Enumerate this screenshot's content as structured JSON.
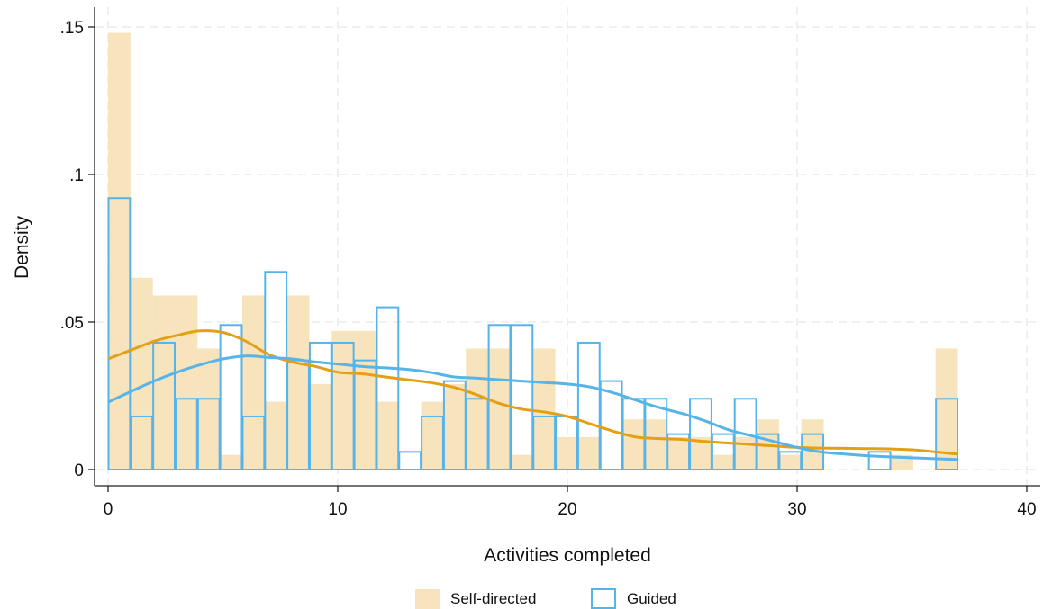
{
  "chart_data": {
    "type": "bar",
    "subtype": "histogram with kernel density overlays",
    "xlabel": "Activities completed",
    "ylabel": "Density",
    "xlim": [
      -1,
      41
    ],
    "ylim": [
      -0.005,
      0.155
    ],
    "x_ticks": [
      0,
      10,
      20,
      30,
      40
    ],
    "x_tick_labels": [
      "0",
      "10",
      "20",
      "30",
      "40"
    ],
    "y_ticks": [
      0,
      0.05,
      0.1,
      0.15
    ],
    "y_tick_labels": [
      "0",
      ".05",
      ".1",
      ".15"
    ],
    "grid": true,
    "legend_position": "bottom",
    "bin_width": 0.974,
    "series": [
      {
        "name": "Self-directed",
        "style": "filled bars",
        "color": "#f7e3bc",
        "bins": [
          {
            "x0": 0.0,
            "value": 0.148
          },
          {
            "x0": 0.974,
            "value": 0.065
          },
          {
            "x0": 1.947,
            "value": 0.059
          },
          {
            "x0": 2.921,
            "value": 0.059
          },
          {
            "x0": 3.895,
            "value": 0.041
          },
          {
            "x0": 4.868,
            "value": 0.005
          },
          {
            "x0": 5.842,
            "value": 0.059
          },
          {
            "x0": 6.816,
            "value": 0.023
          },
          {
            "x0": 7.789,
            "value": 0.059
          },
          {
            "x0": 8.763,
            "value": 0.029
          },
          {
            "x0": 9.737,
            "value": 0.047
          },
          {
            "x0": 10.711,
            "value": 0.047
          },
          {
            "x0": 11.684,
            "value": 0.023
          },
          {
            "x0": 13.632,
            "value": 0.023
          },
          {
            "x0": 14.605,
            "value": 0.029
          },
          {
            "x0": 15.579,
            "value": 0.041
          },
          {
            "x0": 16.553,
            "value": 0.041
          },
          {
            "x0": 17.526,
            "value": 0.005
          },
          {
            "x0": 18.5,
            "value": 0.041
          },
          {
            "x0": 19.474,
            "value": 0.011
          },
          {
            "x0": 20.447,
            "value": 0.011
          },
          {
            "x0": 22.395,
            "value": 0.017
          },
          {
            "x0": 23.368,
            "value": 0.017
          },
          {
            "x0": 24.342,
            "value": 0.011
          },
          {
            "x0": 25.316,
            "value": 0.011
          },
          {
            "x0": 26.289,
            "value": 0.005
          },
          {
            "x0": 27.263,
            "value": 0.011
          },
          {
            "x0": 28.237,
            "value": 0.017
          },
          {
            "x0": 29.211,
            "value": 0.005
          },
          {
            "x0": 30.184,
            "value": 0.017
          },
          {
            "x0": 34.079,
            "value": 0.005
          },
          {
            "x0": 36.026,
            "value": 0.041
          }
        ],
        "density_curve": {
          "color": "#e3a016",
          "x": [
            0,
            1,
            2,
            3,
            4,
            5,
            6,
            7,
            8,
            9,
            10,
            11,
            12,
            13,
            14,
            15,
            16,
            17,
            18,
            19,
            20,
            21,
            22,
            23,
            24,
            25,
            26,
            27,
            28,
            29,
            30,
            31,
            32,
            33,
            34,
            35,
            36,
            37
          ],
          "y": [
            0.0375,
            0.0405,
            0.0435,
            0.0455,
            0.047,
            0.0465,
            0.0435,
            0.039,
            0.0365,
            0.035,
            0.033,
            0.0325,
            0.0315,
            0.0305,
            0.0295,
            0.028,
            0.0255,
            0.0225,
            0.0205,
            0.0195,
            0.018,
            0.0155,
            0.013,
            0.011,
            0.0105,
            0.0102,
            0.0095,
            0.009,
            0.0085,
            0.008,
            0.0075,
            0.0073,
            0.0072,
            0.0071,
            0.007,
            0.0067,
            0.006,
            0.0052
          ]
        }
      },
      {
        "name": "Guided",
        "style": "outlined bars",
        "color": "#56b4e9",
        "bins": [
          {
            "x0": 0.0,
            "value": 0.092
          },
          {
            "x0": 0.974,
            "value": 0.018
          },
          {
            "x0": 1.947,
            "value": 0.043
          },
          {
            "x0": 2.921,
            "value": 0.024
          },
          {
            "x0": 3.895,
            "value": 0.024
          },
          {
            "x0": 4.868,
            "value": 0.049
          },
          {
            "x0": 5.842,
            "value": 0.018
          },
          {
            "x0": 6.816,
            "value": 0.067
          },
          {
            "x0": 7.789,
            "value": 0.037
          },
          {
            "x0": 8.763,
            "value": 0.043
          },
          {
            "x0": 9.737,
            "value": 0.043
          },
          {
            "x0": 10.711,
            "value": 0.037
          },
          {
            "x0": 11.684,
            "value": 0.055
          },
          {
            "x0": 12.658,
            "value": 0.006
          },
          {
            "x0": 13.632,
            "value": 0.018
          },
          {
            "x0": 14.605,
            "value": 0.03
          },
          {
            "x0": 15.579,
            "value": 0.024
          },
          {
            "x0": 16.553,
            "value": 0.049
          },
          {
            "x0": 17.526,
            "value": 0.049
          },
          {
            "x0": 18.5,
            "value": 0.018
          },
          {
            "x0": 19.474,
            "value": 0.018
          },
          {
            "x0": 20.447,
            "value": 0.043
          },
          {
            "x0": 21.421,
            "value": 0.03
          },
          {
            "x0": 22.395,
            "value": 0.024
          },
          {
            "x0": 23.368,
            "value": 0.024
          },
          {
            "x0": 24.342,
            "value": 0.012
          },
          {
            "x0": 25.316,
            "value": 0.024
          },
          {
            "x0": 26.289,
            "value": 0.012
          },
          {
            "x0": 27.263,
            "value": 0.024
          },
          {
            "x0": 28.237,
            "value": 0.012
          },
          {
            "x0": 29.211,
            "value": 0.006
          },
          {
            "x0": 30.184,
            "value": 0.012
          },
          {
            "x0": 33.105,
            "value": 0.006
          },
          {
            "x0": 36.026,
            "value": 0.024
          }
        ],
        "density_curve": {
          "color": "#56b4e9",
          "x": [
            0,
            1,
            2,
            3,
            4,
            5,
            6,
            7,
            8,
            9,
            10,
            11,
            12,
            13,
            14,
            15,
            16,
            17,
            18,
            19,
            20,
            21,
            22,
            23,
            24,
            25,
            26,
            27,
            28,
            29,
            30,
            31,
            32,
            33,
            34,
            35,
            36,
            37
          ],
          "y": [
            0.0228,
            0.0265,
            0.03,
            0.033,
            0.0355,
            0.0375,
            0.0385,
            0.038,
            0.0375,
            0.0365,
            0.0358,
            0.035,
            0.0345,
            0.034,
            0.033,
            0.0315,
            0.031,
            0.0305,
            0.03,
            0.0295,
            0.029,
            0.028,
            0.026,
            0.0235,
            0.021,
            0.019,
            0.0165,
            0.0135,
            0.0115,
            0.0095,
            0.0075,
            0.006,
            0.0053,
            0.0047,
            0.0043,
            0.004,
            0.0037,
            0.0034
          ]
        }
      }
    ]
  }
}
